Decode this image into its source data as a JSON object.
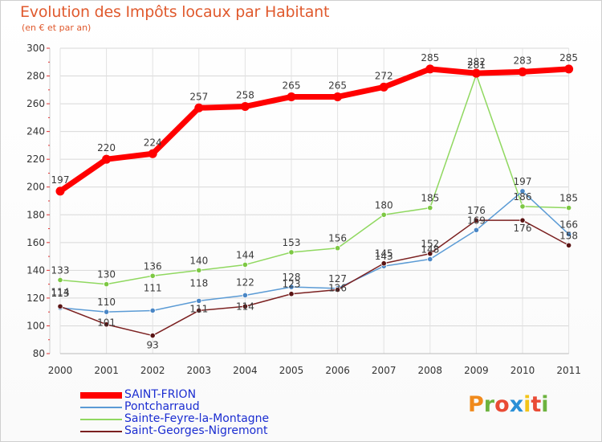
{
  "header": {
    "title": "Evolution des Impôts locaux par Habitant",
    "subtitle": "(en € et par an)"
  },
  "chart_data": {
    "type": "line",
    "x": [
      "2000",
      "2001",
      "2002",
      "2003",
      "2004",
      "2005",
      "2006",
      "2007",
      "2008",
      "2009",
      "2010",
      "2011"
    ],
    "ylim": [
      80,
      300
    ],
    "yticks": [
      80,
      100,
      120,
      140,
      160,
      180,
      200,
      220,
      240,
      260,
      280,
      300
    ],
    "grid": true,
    "legend_position": "bottom-left",
    "series": [
      {
        "name": "SAINT-FRION",
        "color": "#ff0000",
        "values": [
          197,
          220,
          224,
          257,
          258,
          265,
          265,
          272,
          285,
          282,
          283,
          285
        ],
        "labels": [
          "197",
          "220",
          "224",
          "257",
          "258",
          "265",
          "265",
          "272",
          "285",
          "282",
          "283",
          "285"
        ]
      },
      {
        "name": "Pontcharraud",
        "color": "#5b9bd5",
        "values": [
          113,
          110,
          111,
          118,
          122,
          128,
          127,
          143,
          148,
          169,
          197,
          166
        ],
        "labels": [
          "113",
          "110",
          "111",
          "118",
          "122",
          "128",
          "127",
          "143",
          "148",
          "169",
          "197",
          "166"
        ]
      },
      {
        "name": "Sainte-Feyre-la-Montagne",
        "color": "#90d860",
        "values": [
          133,
          130,
          136,
          140,
          144,
          153,
          156,
          180,
          185,
          281,
          186,
          185
        ],
        "labels": [
          "133",
          "130",
          "136",
          "140",
          "144",
          "153",
          "156",
          "180",
          "185",
          "281",
          "186",
          "185"
        ]
      },
      {
        "name": "Saint-Georges-Nigremont",
        "color": "#7b2020",
        "values": [
          114,
          101,
          93,
          111,
          114,
          123,
          126,
          145,
          152,
          176,
          176,
          158
        ],
        "labels": [
          "114",
          "101",
          "93",
          "111",
          "114",
          "123",
          "126",
          "145",
          "152",
          "176",
          "176",
          "158"
        ]
      }
    ]
  },
  "logo": {
    "letters": [
      "P",
      "r",
      "o",
      "x",
      "i",
      "t",
      "i"
    ],
    "colors": [
      "#f08a1c",
      "#6db33f",
      "#e94b35",
      "#2a8fd6",
      "#f3c418",
      "#e94b35",
      "#6db33f"
    ]
  }
}
